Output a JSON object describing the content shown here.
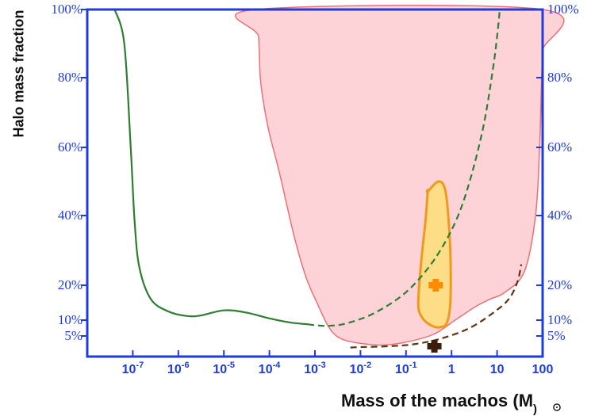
{
  "chart_data": {
    "type": "area",
    "xlabel": "Mass of the machos (M",
    "xlabel_close": ")",
    "ylabel": "Halo mass fraction",
    "x_scale": "log",
    "xlim": [
      1e-08,
      100
    ],
    "ylim": [
      0,
      100
    ],
    "x_ticks": [
      {
        "value": 1e-07,
        "base": "10",
        "exp": "-7"
      },
      {
        "value": 1e-06,
        "base": "10",
        "exp": "-6"
      },
      {
        "value": 1e-05,
        "base": "10",
        "exp": "-5"
      },
      {
        "value": 0.0001,
        "base": "10",
        "exp": "-4"
      },
      {
        "value": 0.001,
        "base": "10",
        "exp": "-3"
      },
      {
        "value": 0.01,
        "base": "10",
        "exp": "-2"
      },
      {
        "value": 0.1,
        "base": "10",
        "exp": "-1"
      },
      {
        "value": 1,
        "base": "1",
        "exp": ""
      },
      {
        "value": 10,
        "base": "10",
        "exp": ""
      },
      {
        "value": 100,
        "base": "100",
        "exp": ""
      }
    ],
    "y_ticks_left": [
      {
        "value": 5,
        "label": "5%"
      },
      {
        "value": 10,
        "label": "10%"
      },
      {
        "value": 20,
        "label": "20%"
      },
      {
        "value": 40,
        "label": "40%"
      },
      {
        "value": 60,
        "label": "60%"
      },
      {
        "value": 80,
        "label": "80%"
      },
      {
        "value": 100,
        "label": "100%"
      }
    ],
    "y_ticks_right": [
      {
        "value": 5,
        "label": "5%"
      },
      {
        "value": 10,
        "label": "10%"
      },
      {
        "value": 20,
        "label": "20%"
      },
      {
        "value": 40,
        "label": "40%"
      },
      {
        "value": 60,
        "label": "60%"
      },
      {
        "value": 80,
        "label": "80%"
      },
      {
        "value": 100,
        "label": "100%"
      }
    ],
    "regions": [
      {
        "id": "excluded-region",
        "fill": "#fdd3d8",
        "stroke": "#ef6f76",
        "points": [
          [
            5e-05,
            100
          ],
          [
            5.8e-05,
            92
          ],
          [
            6.3e-05,
            80
          ],
          [
            7.6e-05,
            72
          ],
          [
            0.0001,
            64
          ],
          [
            0.00017,
            52
          ],
          [
            0.00035,
            34
          ],
          [
            0.00065,
            22
          ],
          [
            0.0012,
            14
          ],
          [
            0.0018,
            9
          ],
          [
            0.0025,
            6
          ],
          [
            0.004,
            4.2
          ],
          [
            0.01,
            3.2
          ],
          [
            0.03,
            2.8
          ],
          [
            0.1,
            3.5
          ],
          [
            0.4,
            5.5
          ],
          [
            1.2,
            10
          ],
          [
            3.5,
            14
          ],
          [
            7,
            16
          ],
          [
            15,
            18
          ],
          [
            40,
            24
          ],
          [
            70,
            40
          ],
          [
            86,
            60
          ],
          [
            95,
            80
          ],
          [
            100,
            88
          ],
          [
            100,
            100
          ]
        ]
      },
      {
        "id": "detection-region",
        "fill": "#fddd86",
        "stroke": "#ef9a1e",
        "points": [
          [
            0.3,
            47
          ],
          [
            0.52,
            50
          ],
          [
            0.74,
            47
          ],
          [
            0.9,
            35
          ],
          [
            0.96,
            24
          ],
          [
            0.93,
            14
          ],
          [
            0.78,
            9
          ],
          [
            0.58,
            7.8
          ],
          [
            0.4,
            8
          ],
          [
            0.25,
            10
          ],
          [
            0.19,
            13
          ],
          [
            0.19,
            18
          ],
          [
            0.22,
            28
          ],
          [
            0.27,
            39
          ],
          [
            0.3,
            47
          ]
        ]
      }
    ],
    "series": [
      {
        "id": "green-solid",
        "color": "#2e7d32",
        "dash": false,
        "points": [
          [
            4e-08,
            100
          ],
          [
            6.5e-08,
            90
          ],
          [
            9e-08,
            60
          ],
          [
            1.1e-07,
            38
          ],
          [
            1.4e-07,
            25
          ],
          [
            2.5e-07,
            16
          ],
          [
            6e-07,
            12.5
          ],
          [
            1.5e-06,
            11.2
          ],
          [
            3e-06,
            11.3
          ],
          [
            1e-05,
            12.8
          ],
          [
            3e-05,
            12.2
          ],
          [
            0.0001,
            10.5
          ],
          [
            0.0003,
            9.2
          ],
          [
            0.0007,
            8.7
          ]
        ]
      },
      {
        "id": "green-dashed",
        "color": "#2e7d32",
        "dash": true,
        "points": [
          [
            0.0007,
            8.7
          ],
          [
            0.001,
            8.4
          ],
          [
            0.002,
            8.2
          ],
          [
            0.005,
            9.0
          ],
          [
            0.02,
            12
          ],
          [
            0.1,
            18
          ],
          [
            0.4,
            27
          ],
          [
            1.2,
            38
          ],
          [
            2.5,
            50
          ],
          [
            5,
            66
          ],
          [
            8,
            82
          ],
          [
            10,
            92
          ],
          [
            11.5,
            100
          ]
        ]
      },
      {
        "id": "brown-dashed",
        "color": "#5a3318",
        "dash": true,
        "points": [
          [
            0.006,
            2.2
          ],
          [
            0.01,
            2.3
          ],
          [
            0.04,
            2.5
          ],
          [
            0.15,
            3.0
          ],
          [
            0.6,
            4.4
          ],
          [
            2.5,
            7.5
          ],
          [
            8,
            12
          ],
          [
            18,
            16
          ],
          [
            28,
            21
          ],
          [
            34,
            26
          ]
        ]
      }
    ],
    "markers": [
      {
        "id": "orange-marker",
        "x": 0.45,
        "y": 20,
        "color": "#ff8c00"
      },
      {
        "id": "brown-marker",
        "x": 0.42,
        "y": 2.5,
        "color": "#3a1d0a"
      }
    ],
    "grid": false,
    "legend": "none"
  }
}
